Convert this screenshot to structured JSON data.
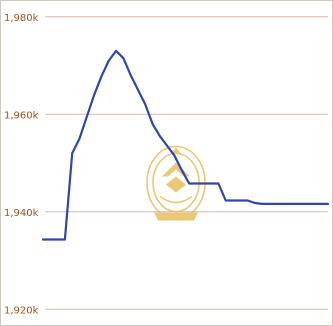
{
  "chart_data": {
    "type": "line",
    "title": "",
    "xlabel": "",
    "ylabel": "",
    "ylim": [
      1918000,
      1982000
    ],
    "y_ticks": [
      {
        "value": 1980000,
        "label": "1,980k"
      },
      {
        "value": 1960000,
        "label": "1,960k"
      },
      {
        "value": 1940000,
        "label": "1,940k"
      },
      {
        "value": 1920000,
        "label": "1,920k"
      }
    ],
    "grid": true,
    "legend": "none",
    "series": [
      {
        "color": "#2f47a8",
        "values": [
          1934300,
          1934300,
          1934300,
          1934300,
          1952000,
          1955000,
          1959500,
          1964000,
          1967800,
          1971000,
          1973000,
          1971500,
          1968000,
          1965000,
          1962000,
          1958000,
          1955500,
          1953500,
          1951500,
          1948500,
          1945800,
          1945800,
          1945800,
          1945800,
          1945800,
          1942300,
          1942300,
          1942300,
          1942300,
          1941800,
          1941600,
          1941600,
          1941600,
          1941600,
          1941600,
          1941600,
          1941600,
          1941600,
          1941600,
          1941600
        ]
      }
    ]
  },
  "watermark": {
    "icon": "emblem-seal-icon",
    "color": "#e6c26a"
  }
}
